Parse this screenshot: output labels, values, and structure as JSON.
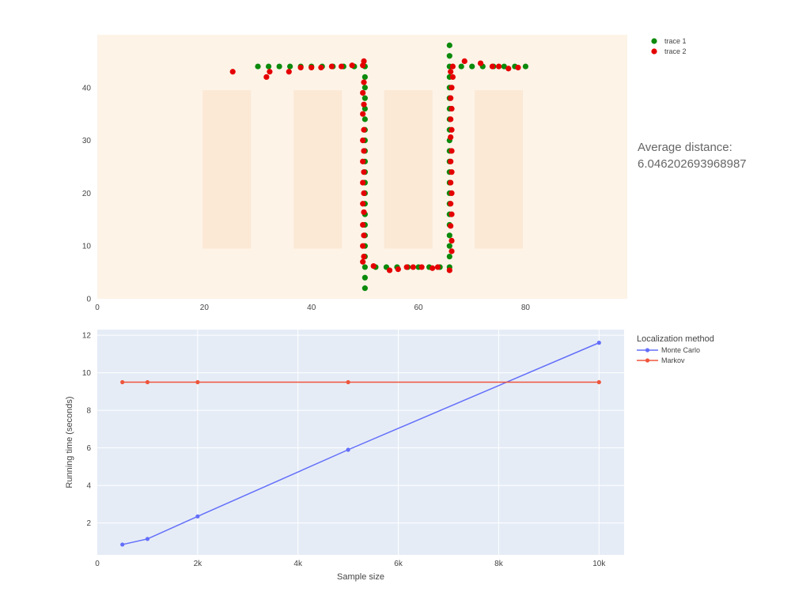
{
  "average_distance": {
    "label": "Average distance:",
    "value": "6.046202693968987"
  },
  "colors": {
    "plot1_background": "#fdf3e7",
    "obstacle": "#fbe8d5",
    "trace1": "#0b8a0b",
    "trace2": "#e50000",
    "plot2_background": "#e5ecf6",
    "grid": "#ffffff",
    "monte_carlo": "#636efa",
    "markov": "#ef553b"
  },
  "chart_data": [
    {
      "type": "scatter",
      "title": "",
      "xlabel": "",
      "ylabel": "",
      "xlim": [
        0,
        99
      ],
      "ylim": [
        0,
        50
      ],
      "x_ticks": [
        0,
        20,
        40,
        60,
        80
      ],
      "x_tick_labels": [
        "0",
        "20",
        "40",
        "60",
        "80"
      ],
      "y_ticks": [
        0,
        10,
        20,
        30,
        40
      ],
      "y_tick_labels": [
        "0",
        "10",
        "20",
        "30",
        "40"
      ],
      "grid": false,
      "legend_position": "top-right, outside plot",
      "obstacles": [
        {
          "x0": 19.7,
          "x1": 28.7,
          "y0": 9.5,
          "y1": 39.5
        },
        {
          "x0": 36.7,
          "x1": 45.7,
          "y0": 9.5,
          "y1": 39.5
        },
        {
          "x0": 53.6,
          "x1": 62.6,
          "y0": 9.5,
          "y1": 39.5
        },
        {
          "x0": 70.5,
          "x1": 79.5,
          "y0": 9.5,
          "y1": 39.5
        }
      ],
      "series": [
        {
          "name": "trace 1",
          "points": [
            [
              30,
              44
            ],
            [
              32,
              44
            ],
            [
              34,
              44
            ],
            [
              36,
              44
            ],
            [
              38,
              44
            ],
            [
              40,
              44
            ],
            [
              42,
              44
            ],
            [
              44,
              44
            ],
            [
              46,
              44
            ],
            [
              48,
              44
            ],
            [
              50,
              44
            ],
            [
              50,
              42
            ],
            [
              50,
              40
            ],
            [
              50,
              38
            ],
            [
              50,
              36
            ],
            [
              50,
              34
            ],
            [
              50,
              32
            ],
            [
              50,
              30
            ],
            [
              50,
              28
            ],
            [
              50,
              26
            ],
            [
              50,
              24
            ],
            [
              50,
              22
            ],
            [
              50,
              20
            ],
            [
              50,
              18
            ],
            [
              50,
              16
            ],
            [
              50,
              14
            ],
            [
              50,
              12
            ],
            [
              50,
              10
            ],
            [
              50,
              8
            ],
            [
              50,
              6
            ],
            [
              50,
              4
            ],
            [
              50,
              2
            ],
            [
              52,
              6
            ],
            [
              54,
              6
            ],
            [
              56,
              6
            ],
            [
              58,
              6
            ],
            [
              60,
              6
            ],
            [
              62,
              6
            ],
            [
              64,
              6
            ],
            [
              65.8,
              6
            ],
            [
              65.8,
              8
            ],
            [
              65.8,
              10
            ],
            [
              65.8,
              12
            ],
            [
              65.8,
              14
            ],
            [
              65.8,
              16
            ],
            [
              65.8,
              18
            ],
            [
              65.8,
              20
            ],
            [
              65.8,
              22
            ],
            [
              65.8,
              24
            ],
            [
              65.8,
              26
            ],
            [
              65.8,
              28
            ],
            [
              65.8,
              30
            ],
            [
              65.8,
              32
            ],
            [
              65.8,
              34
            ],
            [
              65.8,
              36
            ],
            [
              65.8,
              38
            ],
            [
              65.8,
              40
            ],
            [
              65.8,
              42
            ],
            [
              65.8,
              44
            ],
            [
              65.8,
              46
            ],
            [
              65.8,
              48
            ],
            [
              68,
              44
            ],
            [
              70,
              44
            ],
            [
              72,
              44
            ],
            [
              74,
              44
            ],
            [
              76,
              44
            ],
            [
              78,
              44
            ],
            [
              80,
              44
            ]
          ]
        },
        {
          "name": "trace 2",
          "points": [
            [
              25.3,
              43
            ],
            [
              31.6,
              42
            ],
            [
              32.2,
              43
            ],
            [
              35.8,
              43
            ],
            [
              38,
              43.8
            ],
            [
              40,
              43.8
            ],
            [
              41.8,
              43.8
            ],
            [
              43.8,
              44
            ],
            [
              45.6,
              44
            ],
            [
              47.6,
              44.2
            ],
            [
              49.6,
              44.2
            ],
            [
              49.8,
              45
            ],
            [
              49.8,
              41
            ],
            [
              49.6,
              39
            ],
            [
              49.8,
              36.8
            ],
            [
              49.6,
              35
            ],
            [
              49.8,
              32
            ],
            [
              49.6,
              30
            ],
            [
              49.8,
              28
            ],
            [
              49.6,
              26
            ],
            [
              49.8,
              24
            ],
            [
              49.6,
              22
            ],
            [
              49.8,
              20
            ],
            [
              49.6,
              18
            ],
            [
              49.8,
              16.4
            ],
            [
              49.6,
              14
            ],
            [
              49.8,
              12
            ],
            [
              49.6,
              10
            ],
            [
              49.8,
              8
            ],
            [
              49.6,
              7
            ],
            [
              51.6,
              6.2
            ],
            [
              54.6,
              5.4
            ],
            [
              56.2,
              5.6
            ],
            [
              57.8,
              6
            ],
            [
              59,
              6
            ],
            [
              60.6,
              6
            ],
            [
              62.6,
              5.8
            ],
            [
              63.6,
              6
            ],
            [
              65.8,
              5.4
            ],
            [
              66.2,
              9
            ],
            [
              66.2,
              11
            ],
            [
              66,
              13.8
            ],
            [
              66.2,
              16
            ],
            [
              66,
              18
            ],
            [
              66.2,
              20
            ],
            [
              66,
              22
            ],
            [
              66.2,
              24
            ],
            [
              66,
              26
            ],
            [
              66.2,
              28
            ],
            [
              66,
              30.6
            ],
            [
              66.2,
              32
            ],
            [
              66,
              34
            ],
            [
              66.2,
              36
            ],
            [
              66,
              38
            ],
            [
              66.2,
              40
            ],
            [
              66.4,
              42
            ],
            [
              66,
              43
            ],
            [
              66.4,
              44
            ],
            [
              68.6,
              45
            ],
            [
              71.6,
              44.6
            ],
            [
              73.8,
              44
            ],
            [
              75,
              44
            ],
            [
              76.8,
              43.6
            ],
            [
              78.6,
              43.8
            ]
          ]
        }
      ]
    },
    {
      "type": "line",
      "title": "",
      "xlabel": "Sample size",
      "ylabel": "Running time (seconds)",
      "xlim": [
        0,
        10500
      ],
      "ylim": [
        0.3,
        12.3
      ],
      "x_ticks": [
        0,
        2000,
        4000,
        6000,
        8000,
        10000
      ],
      "x_tick_labels": [
        "0",
        "2k",
        "4k",
        "6k",
        "8k",
        "10k"
      ],
      "y_ticks": [
        2,
        4,
        6,
        8,
        10,
        12
      ],
      "y_tick_labels": [
        "2",
        "4",
        "6",
        "8",
        "10",
        "12"
      ],
      "grid": true,
      "legend_title": "Localization method",
      "legend_position": "top-right, outside plot",
      "x": [
        500,
        1000,
        2000,
        5000,
        10000
      ],
      "series": [
        {
          "name": "Monte Carlo",
          "values": [
            0.85,
            1.15,
            2.35,
            5.9,
            11.6
          ]
        },
        {
          "name": "Markov",
          "values": [
            9.5,
            9.5,
            9.5,
            9.5,
            9.5
          ]
        }
      ]
    }
  ]
}
